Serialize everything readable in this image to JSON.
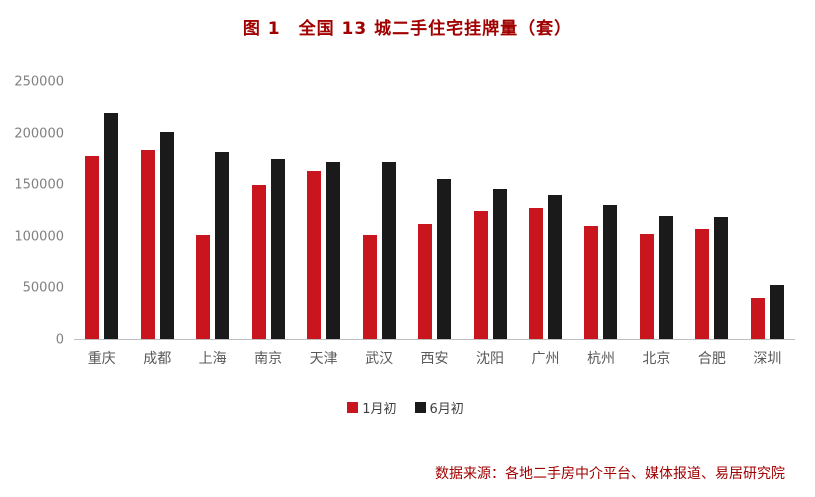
{
  "title": "图 1　全国 13 城二手住宅挂牌量（套）",
  "source": "数据来源：各地二手房中介平台、媒体报道、易居研究院",
  "colors": {
    "series_jan": "#c9151e",
    "series_jun": "#1a1a1a",
    "title_text": "#a00000",
    "source_text": "#a00000",
    "axis_text": "#808080",
    "category_text": "#595959",
    "baseline": "#bfbfbf"
  },
  "chart_data": {
    "type": "bar",
    "title": "图 1　全国 13 城二手住宅挂牌量（套）",
    "categories": [
      "重庆",
      "成都",
      "上海",
      "南京",
      "天津",
      "武汉",
      "西安",
      "沈阳",
      "广州",
      "杭州",
      "北京",
      "合肥",
      "深圳"
    ],
    "series": [
      {
        "name": "1月初",
        "color": "#c9151e",
        "values": [
          178000,
          184000,
          101000,
          150000,
          163000,
          101000,
          112000,
          125000,
          127000,
          110000,
          102000,
          107000,
          40000
        ]
      },
      {
        "name": "6月初",
        "color": "#1a1a1a",
        "values": [
          220000,
          201000,
          182000,
          175000,
          172000,
          172000,
          156000,
          146000,
          140000,
          130000,
          120000,
          119000,
          53000
        ]
      }
    ],
    "xlabel": "",
    "ylabel": "",
    "ylim": [
      0,
      250000
    ],
    "ytick_interval": 50000,
    "ytick_labels": [
      "0",
      "50000",
      "100000",
      "150000",
      "200000",
      "250000"
    ],
    "grid": false,
    "legend_position": "bottom"
  }
}
